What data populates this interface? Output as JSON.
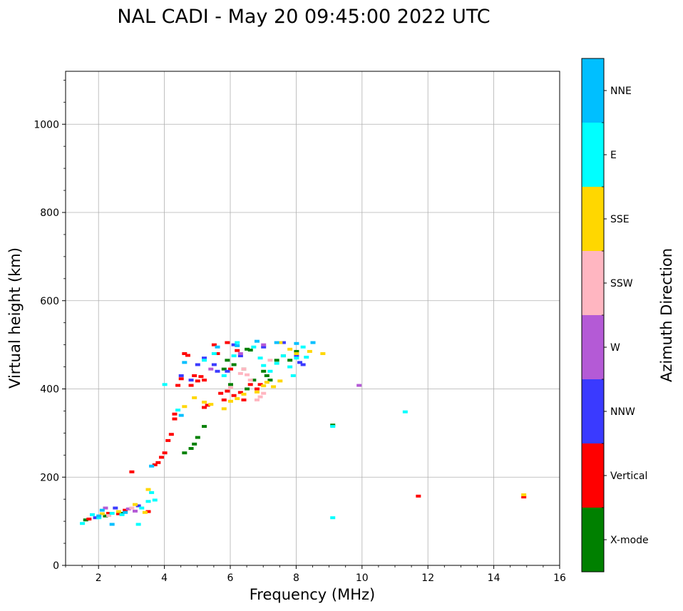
{
  "chart_data": {
    "type": "scatter",
    "title": "NAL CADI - May 20 09:45:00 2022 UTC",
    "xlabel": "Frequency (MHz)",
    "ylabel": "Virtual height (km)",
    "xlim": [
      1,
      16
    ],
    "ylim": [
      0,
      1120
    ],
    "xticks": [
      2,
      4,
      6,
      8,
      10,
      12,
      14,
      16
    ],
    "yticks": [
      0,
      200,
      400,
      600,
      800,
      1000
    ],
    "grid": true,
    "colorbar": {
      "label": "Azimuth Direction",
      "categories": [
        {
          "name": "X-mode",
          "color": "#008000"
        },
        {
          "name": "Vertical",
          "color": "#ff0000"
        },
        {
          "name": "NNW",
          "color": "#3a3aff"
        },
        {
          "name": "W",
          "color": "#b45ad6"
        },
        {
          "name": "SSW",
          "color": "#ffb6c1"
        },
        {
          "name": "SSE",
          "color": "#ffd700"
        },
        {
          "name": "E",
          "color": "#00ffff"
        },
        {
          "name": "NNE",
          "color": "#00bfff"
        }
      ]
    },
    "series": [
      {
        "name": "X-mode",
        "points": [
          [
            1.6,
            103
          ],
          [
            2.2,
            112
          ],
          [
            2.7,
            118
          ],
          [
            4.6,
            255
          ],
          [
            4.8,
            265
          ],
          [
            4.9,
            275
          ],
          [
            5.0,
            290
          ],
          [
            5.2,
            315
          ],
          [
            5.8,
            445
          ],
          [
            5.9,
            465
          ],
          [
            6.0,
            410
          ],
          [
            6.1,
            455
          ],
          [
            6.4,
            445
          ],
          [
            6.5,
            490
          ],
          [
            6.6,
            488
          ],
          [
            6.5,
            400
          ],
          [
            6.7,
            420
          ],
          [
            7.0,
            440
          ],
          [
            7.1,
            430
          ],
          [
            7.2,
            420
          ],
          [
            7.4,
            465
          ],
          [
            7.6,
            475
          ],
          [
            7.8,
            465
          ],
          [
            8.0,
            485
          ],
          [
            9.1,
            318
          ]
        ]
      },
      {
        "name": "Vertical",
        "points": [
          [
            1.7,
            105
          ],
          [
            2.3,
            118
          ],
          [
            2.6,
            117
          ],
          [
            2.8,
            125
          ],
          [
            3.0,
            212
          ],
          [
            3.5,
            122
          ],
          [
            3.7,
            228
          ],
          [
            3.8,
            233
          ],
          [
            3.9,
            245
          ],
          [
            4.0,
            255
          ],
          [
            4.1,
            283
          ],
          [
            4.2,
            297
          ],
          [
            4.3,
            332
          ],
          [
            4.3,
            343
          ],
          [
            4.4,
            408
          ],
          [
            4.5,
            423
          ],
          [
            4.6,
            480
          ],
          [
            4.7,
            476
          ],
          [
            4.8,
            408
          ],
          [
            4.9,
            430
          ],
          [
            5.0,
            418
          ],
          [
            5.1,
            428
          ],
          [
            5.2,
            420
          ],
          [
            5.2,
            358
          ],
          [
            5.3,
            363
          ],
          [
            5.5,
            500
          ],
          [
            5.6,
            480
          ],
          [
            5.7,
            390
          ],
          [
            5.8,
            375
          ],
          [
            5.9,
            395
          ],
          [
            5.9,
            505
          ],
          [
            6.0,
            445
          ],
          [
            6.1,
            385
          ],
          [
            6.2,
            487
          ],
          [
            6.3,
            392
          ],
          [
            6.4,
            375
          ],
          [
            6.6,
            410
          ],
          [
            6.8,
            400
          ],
          [
            6.9,
            410
          ],
          [
            11.7,
            157
          ],
          [
            14.9,
            155
          ]
        ]
      },
      {
        "name": "NNW",
        "points": [
          [
            1.9,
            108
          ],
          [
            2.5,
            130
          ],
          [
            3.2,
            135
          ],
          [
            4.5,
            430
          ],
          [
            4.8,
            420
          ],
          [
            5.0,
            455
          ],
          [
            5.2,
            470
          ],
          [
            5.5,
            455
          ],
          [
            5.6,
            440
          ],
          [
            5.9,
            440
          ],
          [
            6.1,
            500
          ],
          [
            6.3,
            475
          ],
          [
            7.0,
            495
          ],
          [
            7.6,
            505
          ],
          [
            8.0,
            475
          ],
          [
            8.1,
            460
          ],
          [
            8.2,
            455
          ]
        ]
      },
      {
        "name": "W",
        "points": [
          [
            2.2,
            130
          ],
          [
            2.9,
            128
          ],
          [
            3.1,
            123
          ],
          [
            5.4,
            445
          ],
          [
            6.3,
            480
          ],
          [
            7.0,
            500
          ],
          [
            9.9,
            408
          ]
        ]
      },
      {
        "name": "SSW",
        "points": [
          [
            2.3,
            113
          ],
          [
            3.0,
            130
          ],
          [
            6.0,
            403
          ],
          [
            6.3,
            435
          ],
          [
            6.4,
            445
          ],
          [
            6.5,
            432
          ],
          [
            6.6,
            420
          ],
          [
            6.8,
            375
          ],
          [
            6.9,
            382
          ],
          [
            7.0,
            390
          ],
          [
            7.2,
            465
          ]
        ]
      },
      {
        "name": "SSE",
        "points": [
          [
            2.1,
            117
          ],
          [
            2.6,
            122
          ],
          [
            3.1,
            138
          ],
          [
            3.4,
            120
          ],
          [
            3.5,
            172
          ],
          [
            4.6,
            360
          ],
          [
            4.9,
            380
          ],
          [
            5.2,
            370
          ],
          [
            5.4,
            365
          ],
          [
            5.8,
            355
          ],
          [
            6.0,
            372
          ],
          [
            6.2,
            378
          ],
          [
            6.4,
            388
          ],
          [
            6.8,
            393
          ],
          [
            7.0,
            407
          ],
          [
            7.1,
            415
          ],
          [
            7.3,
            405
          ],
          [
            7.5,
            418
          ],
          [
            7.5,
            505
          ],
          [
            7.8,
            490
          ],
          [
            8.0,
            480
          ],
          [
            8.4,
            485
          ],
          [
            8.8,
            480
          ],
          [
            14.9,
            160
          ]
        ]
      },
      {
        "name": "E",
        "points": [
          [
            1.5,
            95
          ],
          [
            1.8,
            115
          ],
          [
            2.0,
            108
          ],
          [
            2.4,
            118
          ],
          [
            2.7,
            115
          ],
          [
            3.2,
            93
          ],
          [
            3.3,
            130
          ],
          [
            3.5,
            145
          ],
          [
            3.6,
            165
          ],
          [
            3.7,
            148
          ],
          [
            4.0,
            410
          ],
          [
            4.4,
            352
          ],
          [
            5.2,
            465
          ],
          [
            5.5,
            480
          ],
          [
            5.8,
            430
          ],
          [
            6.1,
            475
          ],
          [
            6.2,
            505
          ],
          [
            6.7,
            495
          ],
          [
            6.9,
            470
          ],
          [
            7.0,
            453
          ],
          [
            7.2,
            440
          ],
          [
            7.4,
            458
          ],
          [
            7.6,
            475
          ],
          [
            7.8,
            450
          ],
          [
            7.9,
            430
          ],
          [
            8.0,
            470
          ],
          [
            8.2,
            495
          ],
          [
            8.3,
            472
          ],
          [
            9.1,
            108
          ],
          [
            9.1,
            315
          ],
          [
            11.3,
            348
          ]
        ]
      },
      {
        "name": "NNE",
        "points": [
          [
            2.0,
            112
          ],
          [
            2.1,
            125
          ],
          [
            2.4,
            93
          ],
          [
            2.8,
            120
          ],
          [
            3.6,
            225
          ],
          [
            4.5,
            340
          ],
          [
            4.6,
            460
          ],
          [
            5.6,
            495
          ],
          [
            6.2,
            498
          ],
          [
            6.8,
            508
          ],
          [
            7.4,
            505
          ],
          [
            8.0,
            503
          ],
          [
            8.5,
            505
          ]
        ]
      }
    ]
  }
}
